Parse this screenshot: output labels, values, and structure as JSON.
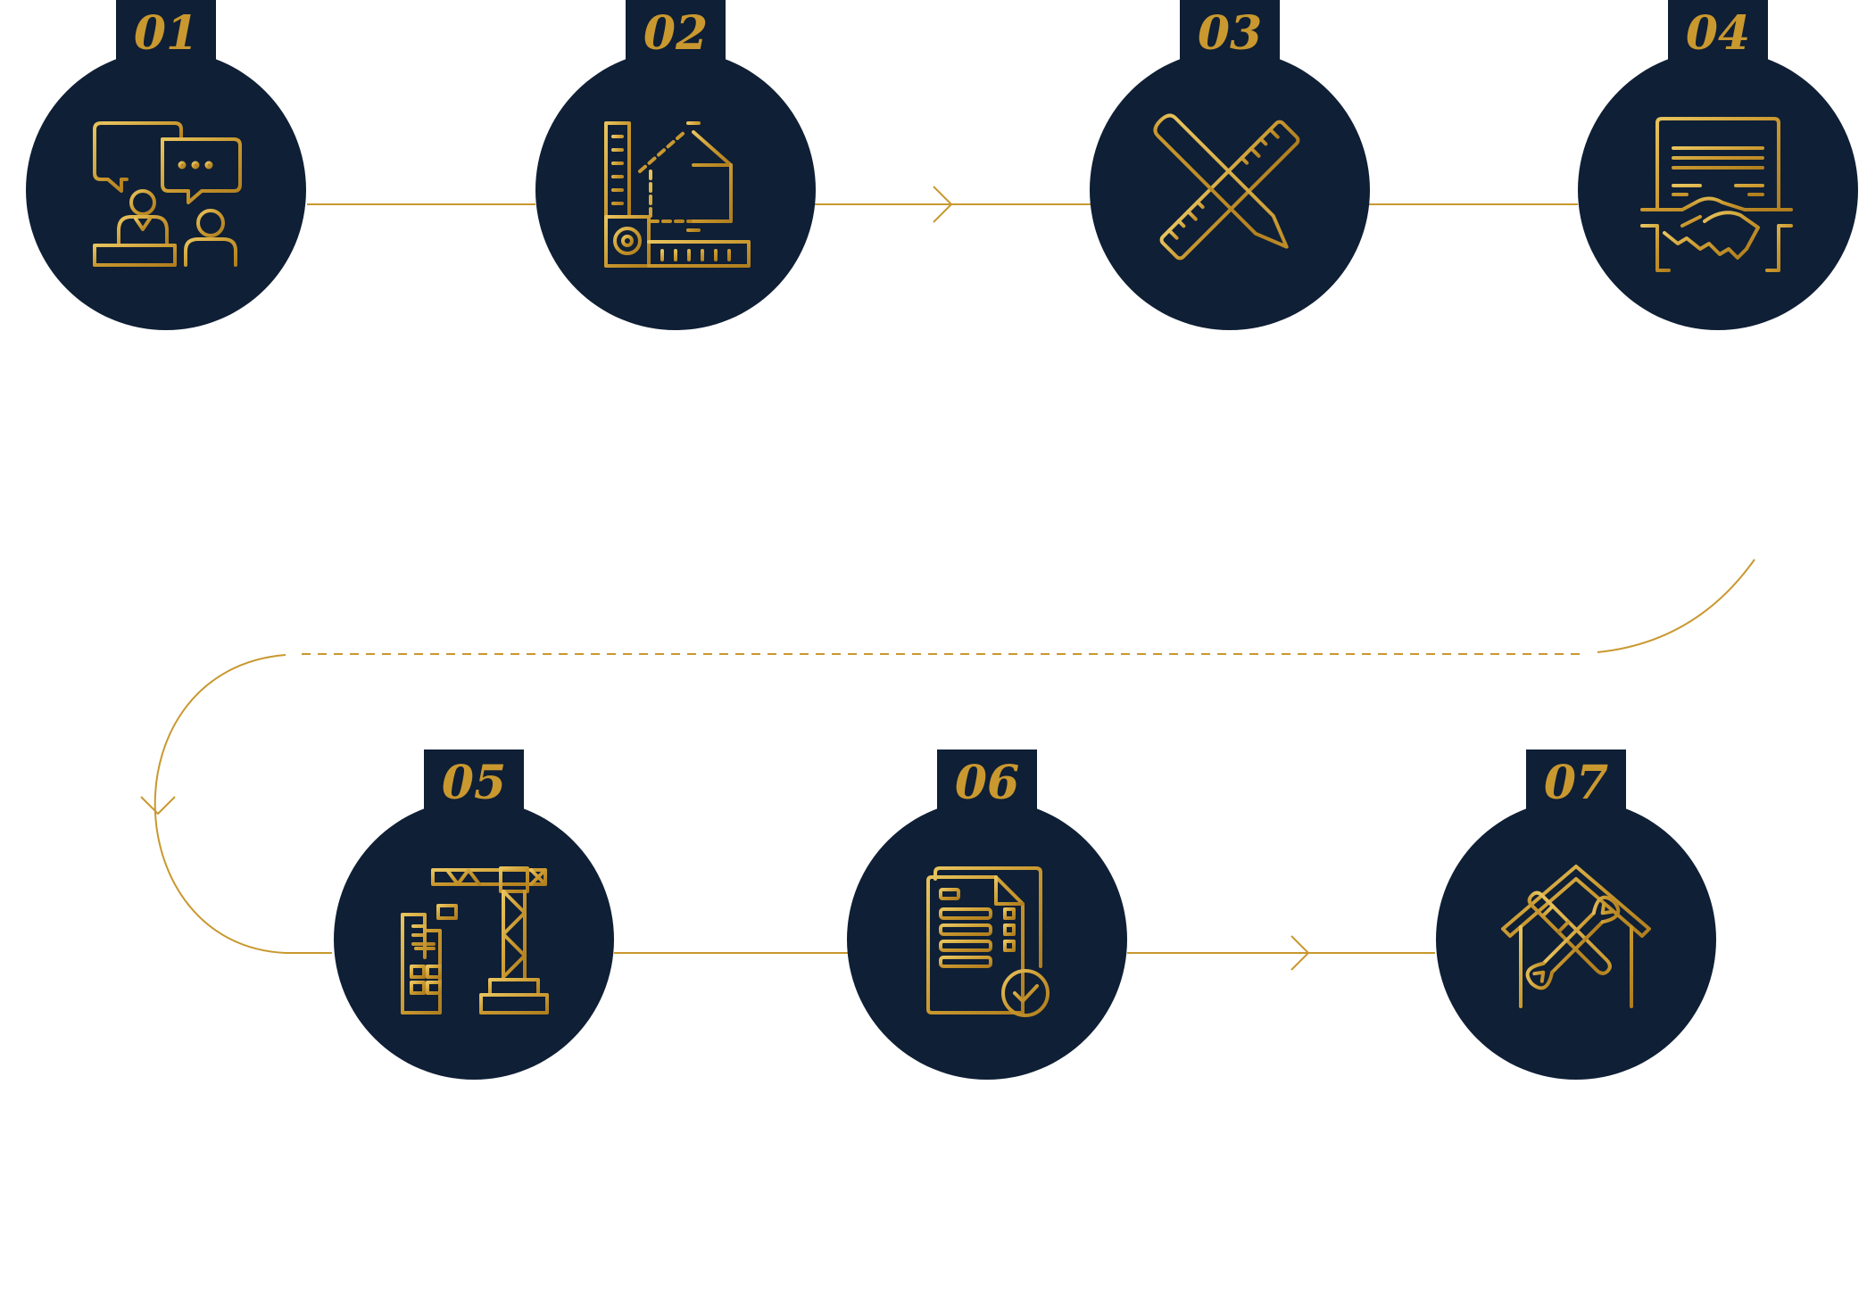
{
  "colors": {
    "navy": "#0f1f35",
    "gold": "#c9982f",
    "gold_light": "#e6c05a",
    "background": "#ffffff"
  },
  "steps": [
    {
      "number": "01",
      "icon": "consultation-icon"
    },
    {
      "number": "02",
      "icon": "architectural-design-icon"
    },
    {
      "number": "03",
      "icon": "pencil-ruler-icon"
    },
    {
      "number": "04",
      "icon": "contract-handshake-icon"
    },
    {
      "number": "05",
      "icon": "construction-crane-icon"
    },
    {
      "number": "06",
      "icon": "checklist-document-icon"
    },
    {
      "number": "07",
      "icon": "home-repair-tools-icon"
    }
  ]
}
